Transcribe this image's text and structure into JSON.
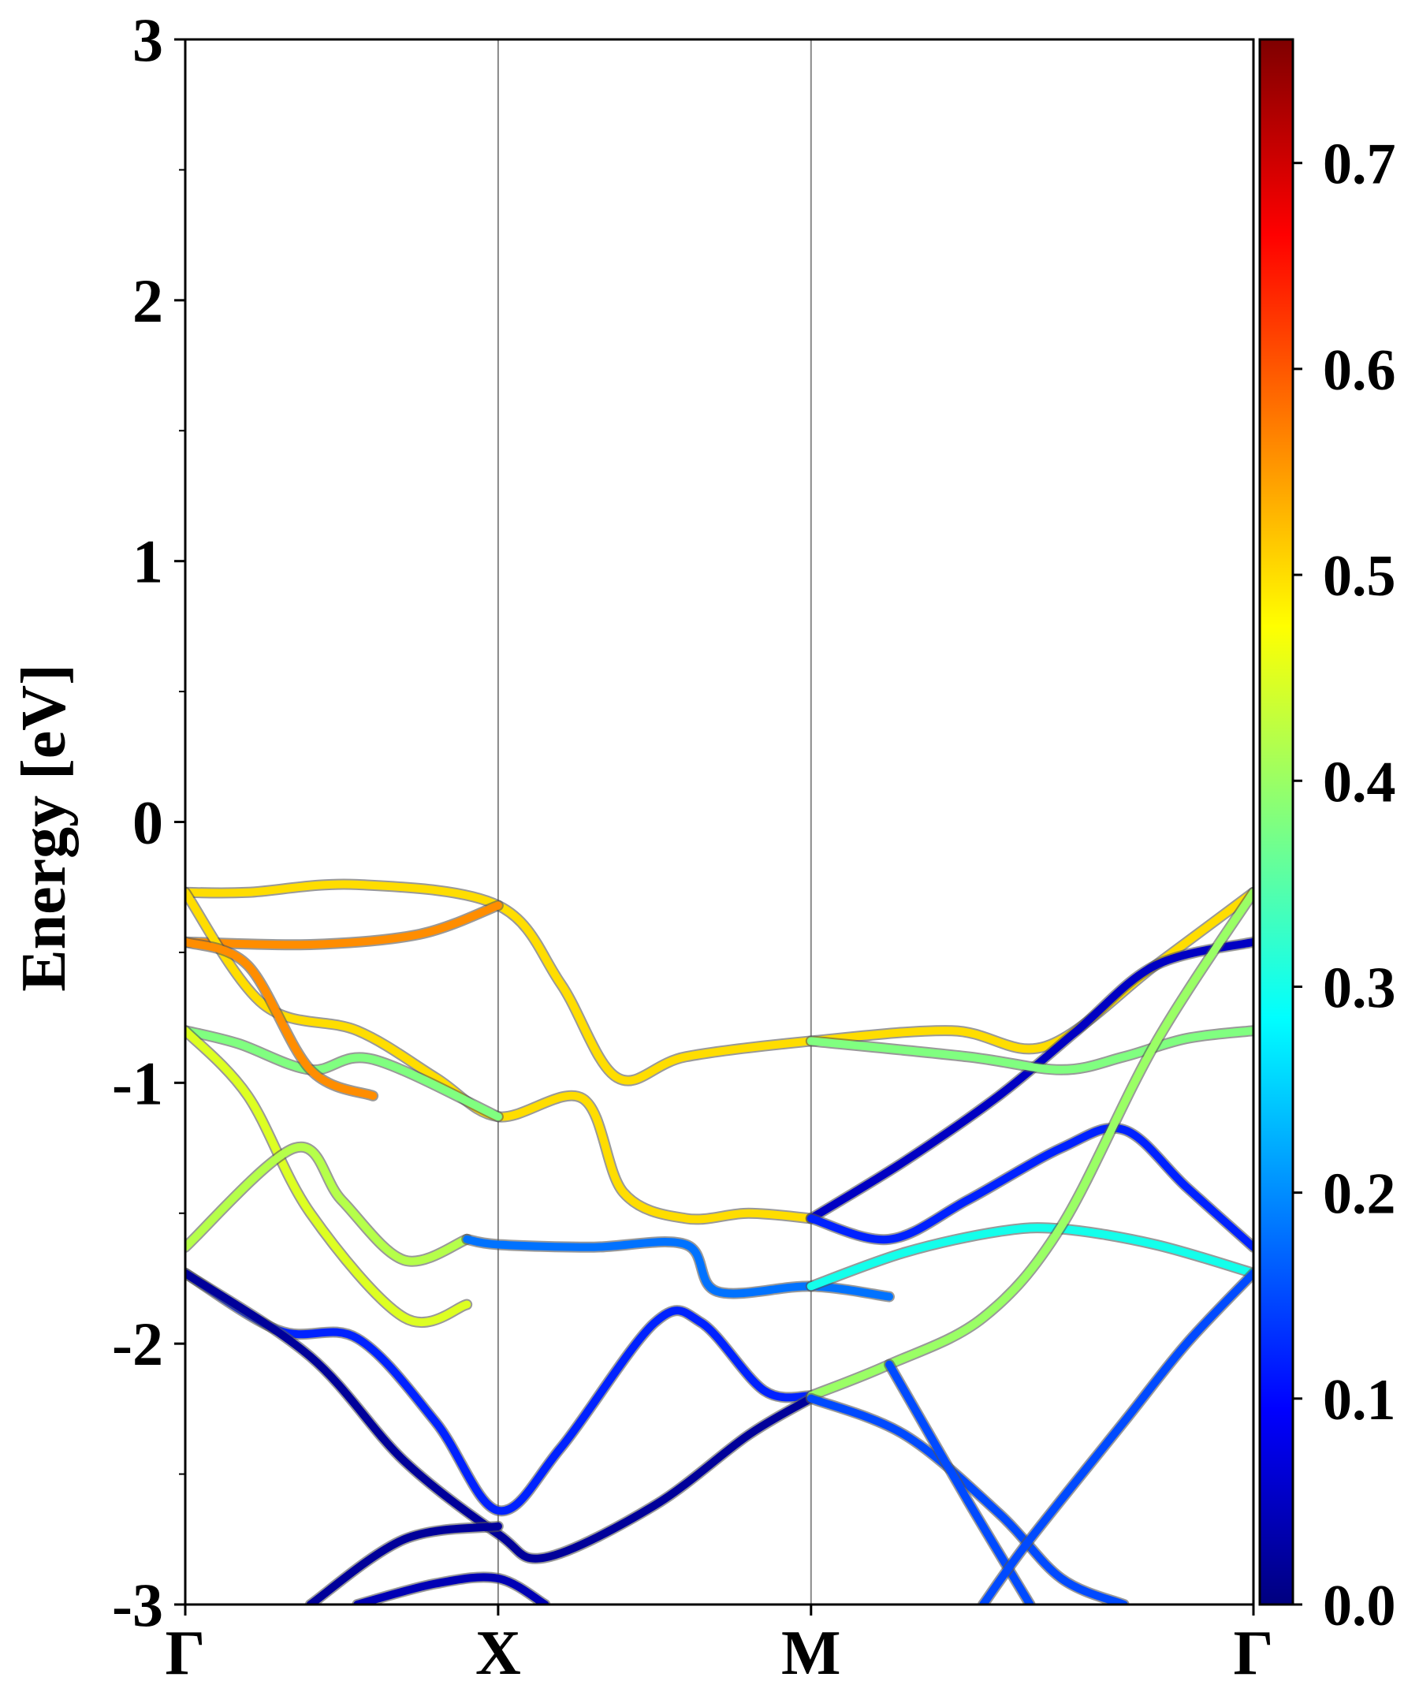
{
  "chart_data": {
    "type": "line",
    "ylabel": "Energy [eV]",
    "ylim": [
      -3,
      3
    ],
    "yticks": [
      "3",
      "2",
      "1",
      "0",
      "-1",
      "-2",
      "-3"
    ],
    "kpath": [
      "Γ",
      "X",
      "M",
      "Γ"
    ],
    "kpath_positions": [
      0,
      1,
      2,
      3.414
    ],
    "xlim": [
      0,
      3.414
    ],
    "grid": false,
    "colorbar": {
      "colormap": "jet",
      "range": [
        0.0,
        0.76
      ],
      "ticks": [
        "0.0",
        "0.1",
        "0.2",
        "0.3",
        "0.4",
        "0.5",
        "0.6",
        "0.7"
      ]
    },
    "series": [
      {
        "color_value": 0.5,
        "points": [
          [
            0,
            -0.27
          ],
          [
            0.2,
            -0.27
          ],
          [
            0.55,
            -0.24
          ],
          [
            1.0,
            -0.32
          ],
          [
            1.2,
            -0.62
          ],
          [
            1.38,
            -0.98
          ],
          [
            1.6,
            -0.9
          ],
          [
            2.0,
            -0.84
          ],
          [
            2.45,
            -0.8
          ],
          [
            2.75,
            -0.86
          ],
          [
            3.1,
            -0.55
          ],
          [
            3.414,
            -0.27
          ]
        ]
      },
      {
        "color_value": 0.56,
        "points": [
          [
            0,
            -0.46
          ],
          [
            0.4,
            -0.47
          ],
          [
            0.75,
            -0.43
          ],
          [
            1.0,
            -0.32
          ]
        ]
      },
      {
        "color_value": 0.5,
        "points": [
          [
            0,
            -0.27
          ],
          [
            0.25,
            -0.7
          ],
          [
            0.55,
            -0.8
          ],
          [
            0.8,
            -0.98
          ],
          [
            1.0,
            -1.13
          ],
          [
            1.27,
            -1.06
          ],
          [
            1.4,
            -1.42
          ],
          [
            1.6,
            -1.52
          ],
          [
            1.8,
            -1.5
          ],
          [
            2.0,
            -1.52
          ]
        ]
      },
      {
        "color_value": 0.38,
        "points": [
          [
            0,
            -0.8
          ],
          [
            0.17,
            -0.85
          ],
          [
            0.4,
            -0.95
          ],
          [
            0.6,
            -0.91
          ],
          [
            1.0,
            -1.13
          ]
        ]
      },
      {
        "color_value": 0.56,
        "points": [
          [
            0,
            -0.46
          ],
          [
            0.2,
            -0.55
          ],
          [
            0.4,
            -0.95
          ],
          [
            0.6,
            -1.05
          ]
        ]
      },
      {
        "color_value": 0.45,
        "points": [
          [
            0,
            -0.8
          ],
          [
            0.2,
            -1.05
          ],
          [
            0.4,
            -1.5
          ],
          [
            0.7,
            -1.9
          ],
          [
            0.9,
            -1.85
          ]
        ]
      },
      {
        "color_value": 0.42,
        "points": [
          [
            0,
            -1.63
          ],
          [
            0.35,
            -1.25
          ],
          [
            0.5,
            -1.45
          ],
          [
            0.7,
            -1.68
          ],
          [
            0.9,
            -1.6
          ]
        ]
      },
      {
        "color_value": 0.18,
        "points": [
          [
            0.9,
            -1.6
          ],
          [
            1.0,
            -1.62
          ],
          [
            1.3,
            -1.63
          ],
          [
            1.6,
            -1.62
          ],
          [
            1.7,
            -1.8
          ],
          [
            2.0,
            -1.78
          ],
          [
            2.25,
            -1.82
          ]
        ]
      },
      {
        "color_value": 0.05,
        "points": [
          [
            2.0,
            -1.52
          ],
          [
            2.3,
            -1.3
          ],
          [
            2.6,
            -1.05
          ],
          [
            2.85,
            -0.8
          ],
          [
            3.1,
            -0.55
          ],
          [
            3.414,
            -0.46
          ]
        ]
      },
      {
        "color_value": 0.12,
        "points": [
          [
            2.0,
            -1.52
          ],
          [
            2.25,
            -1.6
          ],
          [
            2.5,
            -1.45
          ],
          [
            2.8,
            -1.25
          ],
          [
            3.0,
            -1.18
          ],
          [
            3.2,
            -1.4
          ],
          [
            3.414,
            -1.63
          ]
        ]
      },
      {
        "color_value": 0.38,
        "points": [
          [
            2.0,
            -0.84
          ],
          [
            2.5,
            -0.9
          ],
          [
            2.8,
            -0.95
          ],
          [
            3.0,
            -0.9
          ],
          [
            3.2,
            -0.83
          ],
          [
            3.414,
            -0.8
          ]
        ]
      },
      {
        "color_value": 0.3,
        "points": [
          [
            2.0,
            -1.78
          ],
          [
            2.3,
            -1.65
          ],
          [
            2.6,
            -1.57
          ],
          [
            2.8,
            -1.56
          ],
          [
            3.1,
            -1.62
          ],
          [
            3.414,
            -1.73
          ]
        ]
      },
      {
        "color_value": 0.12,
        "points": [
          [
            0,
            -1.73
          ],
          [
            0.3,
            -1.95
          ],
          [
            0.55,
            -1.98
          ],
          [
            0.8,
            -2.3
          ],
          [
            1.0,
            -2.64
          ],
          [
            1.2,
            -2.4
          ],
          [
            1.5,
            -1.92
          ],
          [
            1.65,
            -1.92
          ],
          [
            1.85,
            -2.18
          ],
          [
            2.0,
            -2.2
          ]
        ]
      },
      {
        "color_value": 0.02,
        "points": [
          [
            0,
            -1.73
          ],
          [
            0.4,
            -2.05
          ],
          [
            0.7,
            -2.45
          ],
          [
            1.0,
            -2.73
          ],
          [
            1.15,
            -2.82
          ],
          [
            1.5,
            -2.62
          ],
          [
            1.8,
            -2.35
          ],
          [
            2.0,
            -2.21
          ]
        ]
      },
      {
        "color_value": 0.4,
        "points": [
          [
            2.0,
            -2.2
          ],
          [
            2.25,
            -2.08
          ],
          [
            2.55,
            -1.9
          ],
          [
            2.8,
            -1.55
          ],
          [
            3.1,
            -0.85
          ],
          [
            3.414,
            -0.27
          ]
        ]
      },
      {
        "color_value": 0.15,
        "points": [
          [
            2.0,
            -2.21
          ],
          [
            2.3,
            -2.35
          ],
          [
            2.6,
            -2.65
          ],
          [
            2.8,
            -2.9
          ],
          [
            3.0,
            -3.0
          ]
        ]
      },
      {
        "color_value": 0.15,
        "points": [
          [
            2.25,
            -2.08
          ],
          [
            2.5,
            -2.6
          ],
          [
            2.7,
            -3.0
          ]
        ]
      },
      {
        "color_value": 0.15,
        "points": [
          [
            2.55,
            -3.0
          ],
          [
            2.7,
            -2.75
          ],
          [
            3.0,
            -2.3
          ],
          [
            3.2,
            -2.0
          ],
          [
            3.414,
            -1.73
          ]
        ]
      },
      {
        "color_value": 0.02,
        "points": [
          [
            0.4,
            -3.0
          ],
          [
            0.7,
            -2.75
          ],
          [
            1.0,
            -2.7
          ]
        ]
      },
      {
        "color_value": 0.04,
        "points": [
          [
            0.55,
            -3.0
          ],
          [
            0.8,
            -2.92
          ],
          [
            1.0,
            -2.9
          ],
          [
            1.15,
            -3.0
          ]
        ]
      }
    ]
  }
}
